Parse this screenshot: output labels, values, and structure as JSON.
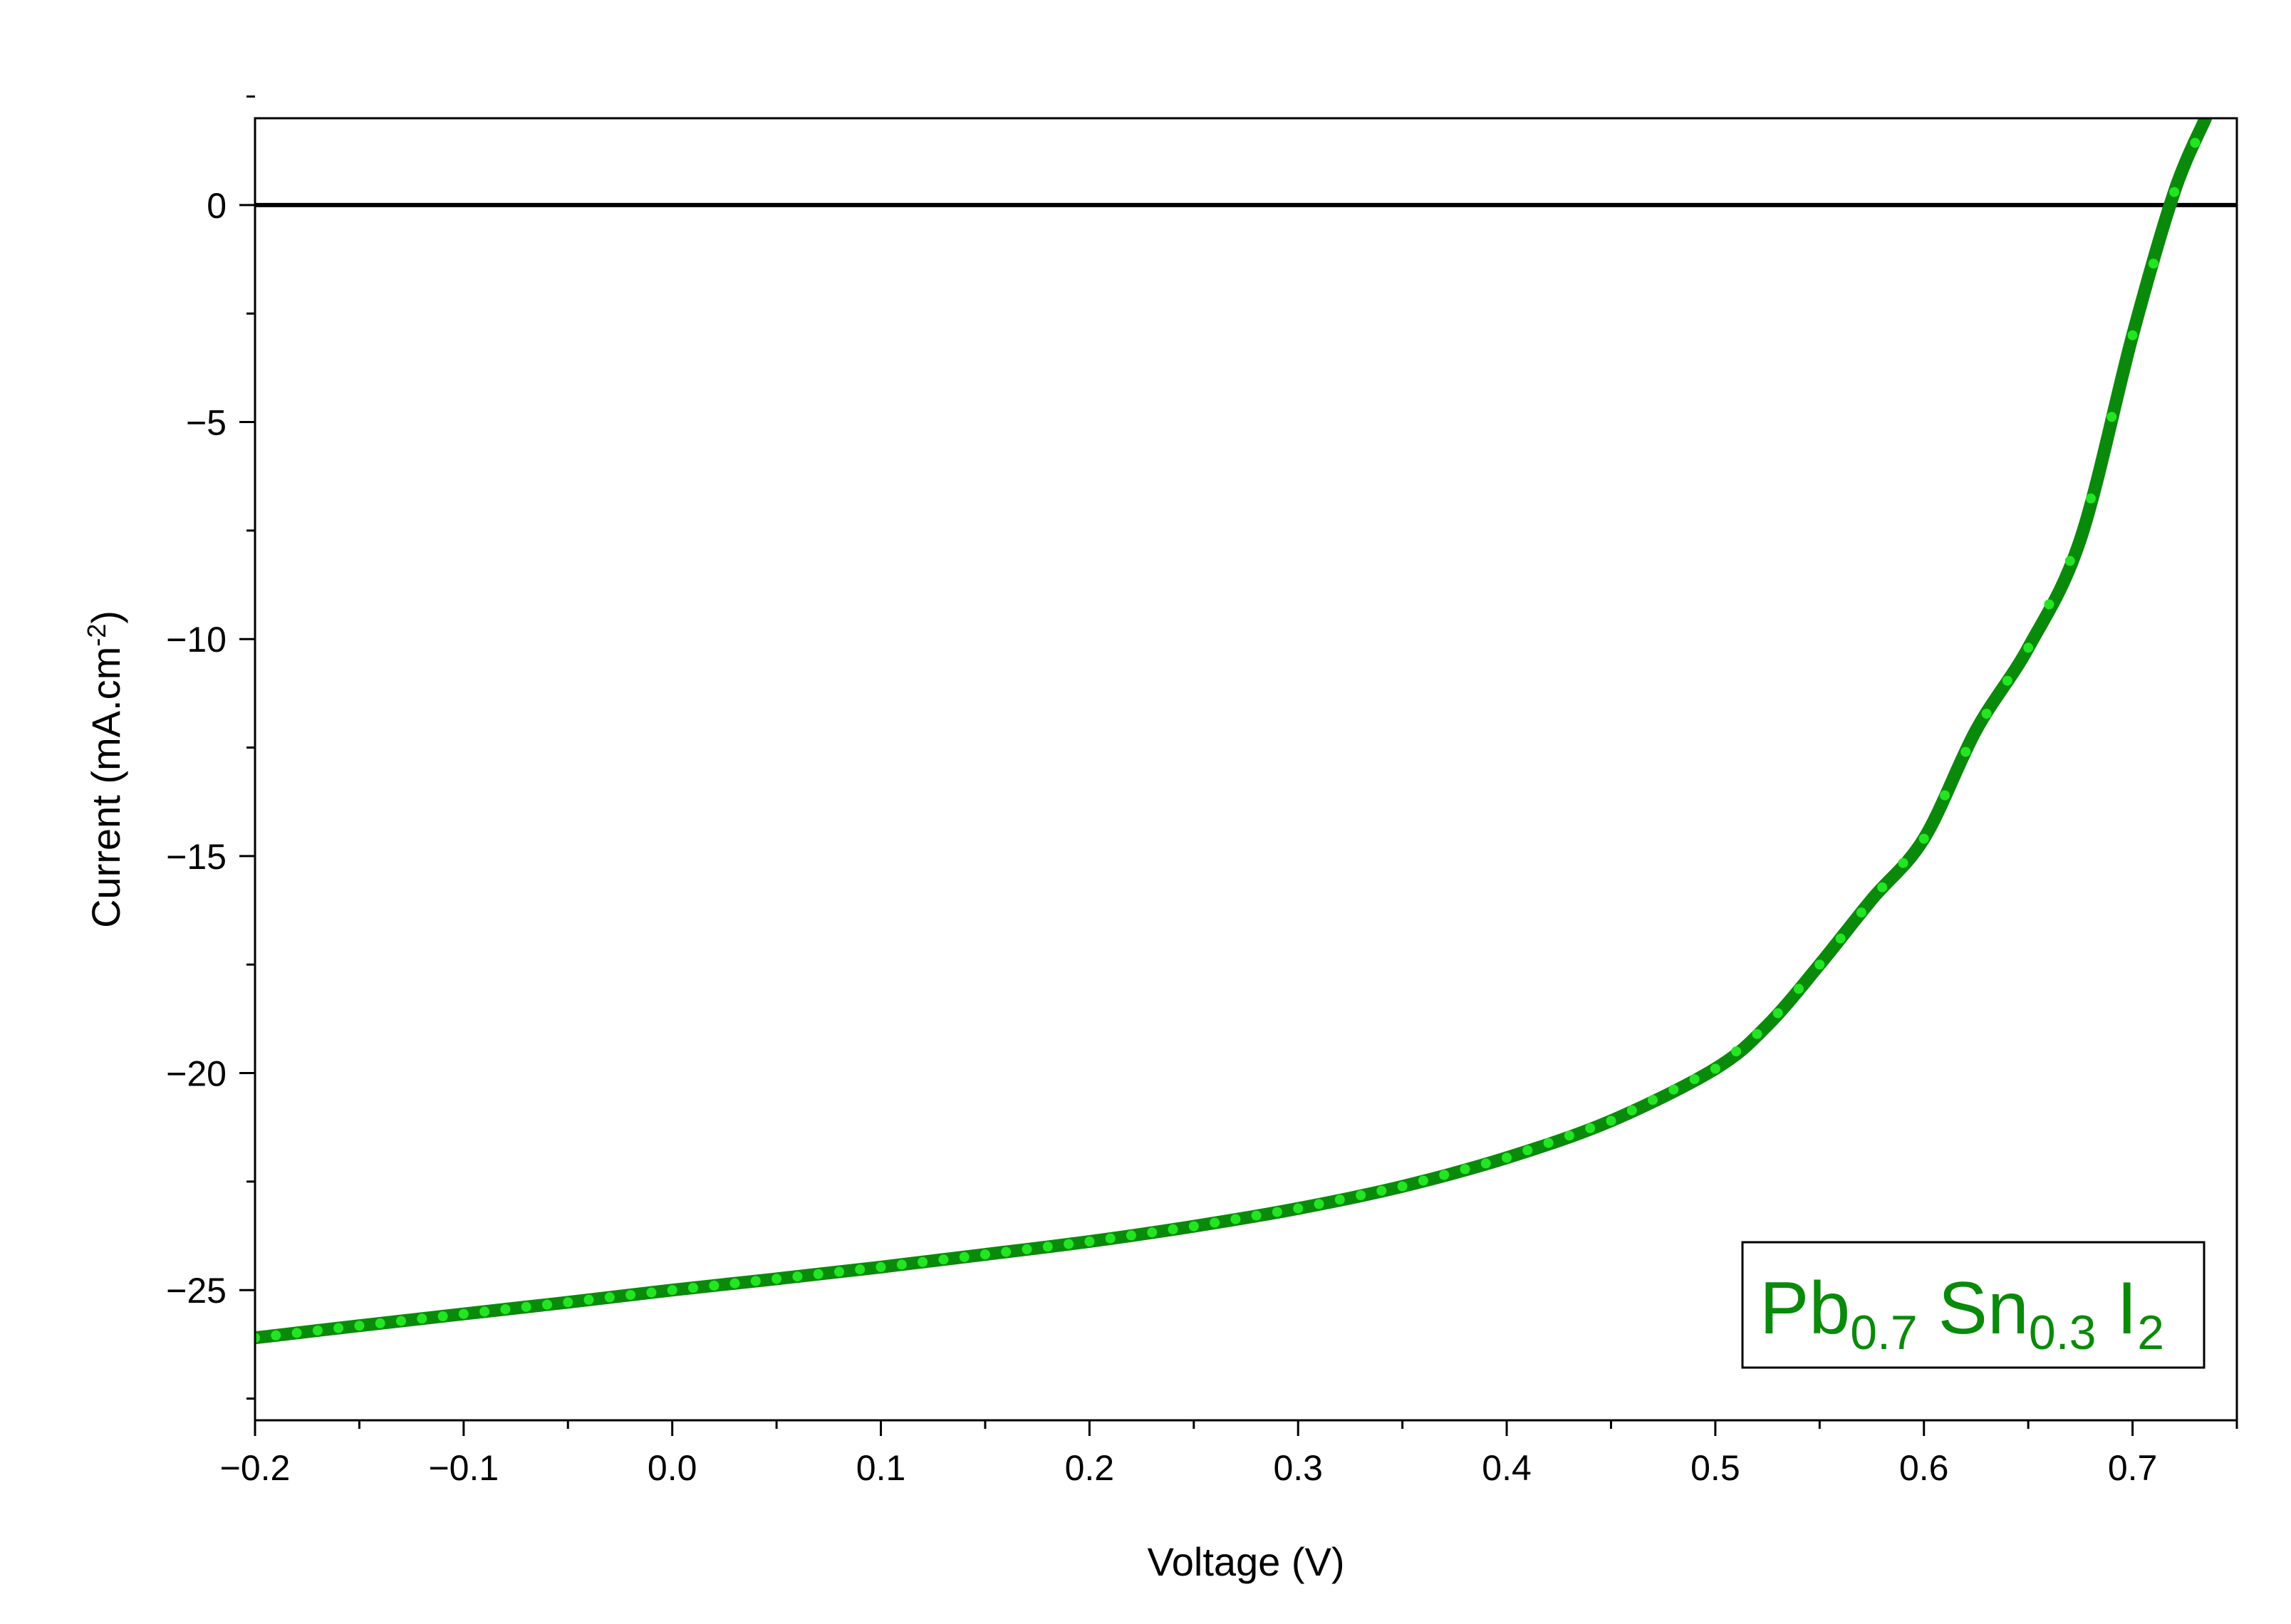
{
  "chart_data": {
    "type": "line",
    "xlabel": "Voltage (V)",
    "ylabel": {
      "base": "Current (mA.cm",
      "sup": "-2",
      "end": ")"
    },
    "xlim": [
      -0.2,
      0.75
    ],
    "ylim": [
      -28,
      2
    ],
    "x_ticks": [
      -0.2,
      -0.1,
      0.0,
      0.1,
      0.2,
      0.3,
      0.4,
      0.5,
      0.6,
      0.7
    ],
    "x_tick_labels": [
      "−0.2",
      "−0.1",
      "0.0",
      "0.1",
      "0.2",
      "0.3",
      "0.4",
      "0.5",
      "0.6",
      "0.7"
    ],
    "y_ticks": [
      0,
      -5,
      -10,
      -15,
      -20,
      -25
    ],
    "y_tick_labels": [
      "0",
      "−5",
      "−10",
      "−15",
      "−20",
      "−25"
    ],
    "grid": false,
    "reference_line_y": 0,
    "legend": {
      "placement": "bottom-right",
      "parts": [
        {
          "text": "Pb",
          "sub": "0.7"
        },
        {
          "text": " Sn",
          "sub": "0.3"
        },
        {
          "text": " I",
          "sub": "2"
        }
      ]
    },
    "colors": {
      "line": "#0a8a0a",
      "markers": "#22e622",
      "legend_text": "#0a8a0a",
      "zero_line": "#000000"
    },
    "series": [
      {
        "x": [
          -0.2,
          -0.15,
          -0.1,
          -0.05,
          0.0,
          0.05,
          0.1,
          0.15,
          0.2,
          0.25,
          0.3,
          0.35,
          0.4,
          0.45,
          0.5,
          0.525,
          0.55,
          0.575,
          0.6,
          0.625,
          0.65,
          0.675,
          0.7,
          0.72,
          0.735
        ],
        "y": [
          -26.1,
          -25.82,
          -25.55,
          -25.28,
          -25.0,
          -24.74,
          -24.47,
          -24.18,
          -23.88,
          -23.53,
          -23.12,
          -22.61,
          -21.95,
          -21.1,
          -19.9,
          -18.9,
          -17.5,
          -16.0,
          -14.6,
          -12.1,
          -10.2,
          -7.7,
          -3.0,
          0.3,
          2.0
        ]
      }
    ]
  }
}
